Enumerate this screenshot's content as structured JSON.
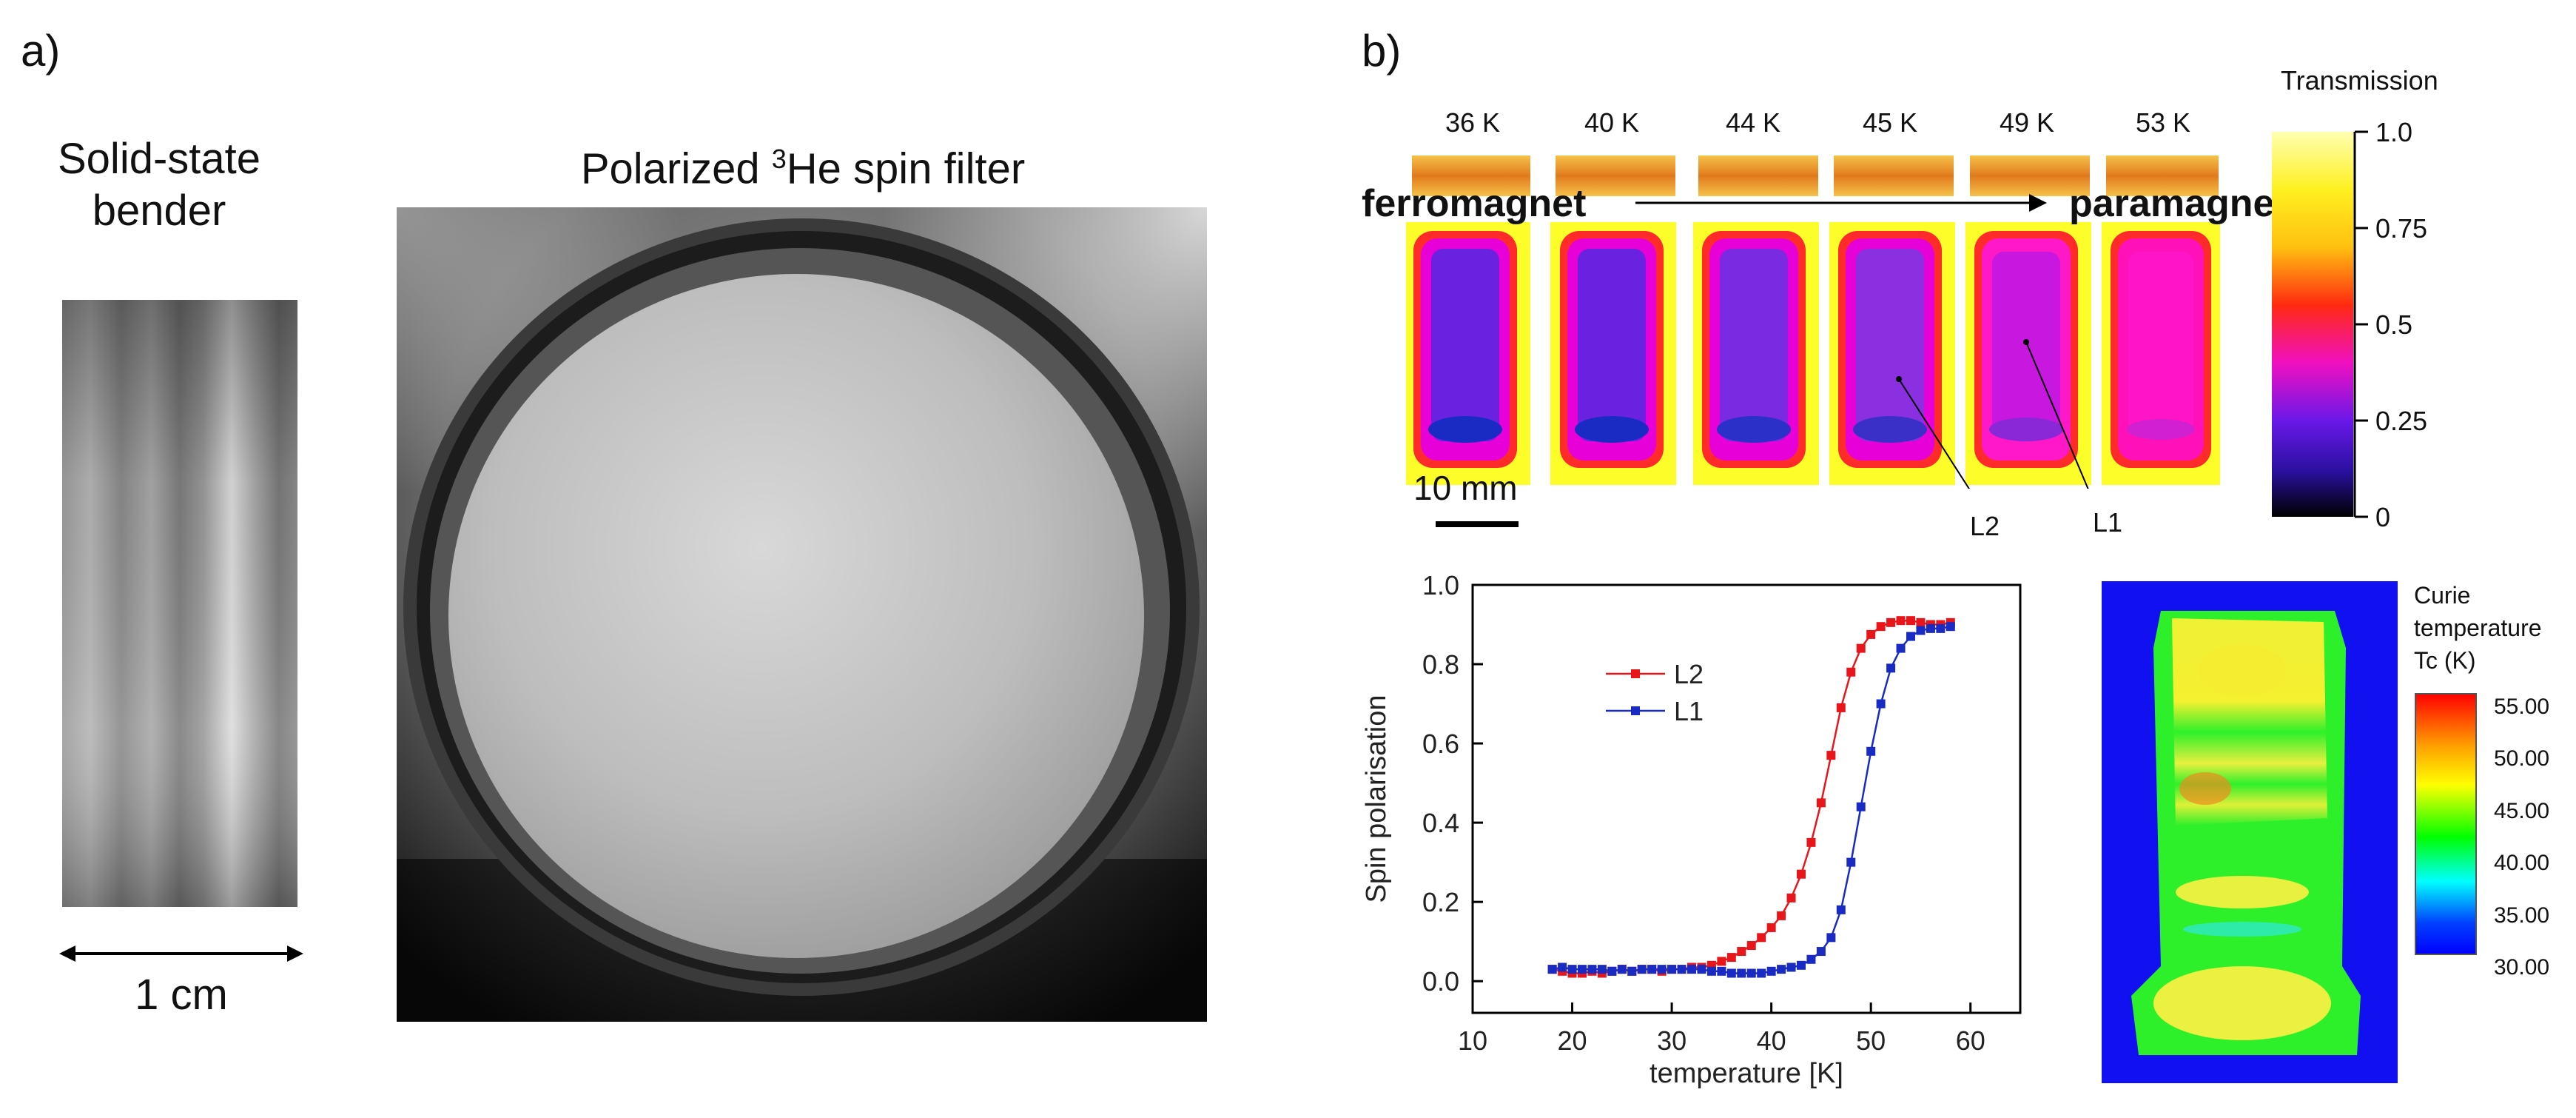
{
  "panel_a": {
    "label": "a)",
    "bender_title_line1": "Solid-state",
    "bender_title_line2": "bender",
    "scale_label": "1 cm",
    "filter_title_pre": "Polarized ",
    "filter_title_sup": "3",
    "filter_title_post": "He spin filter"
  },
  "panel_b": {
    "label": "b)",
    "temperatures": [
      "36 K",
      "40 K",
      "44 K",
      "45 K",
      "49 K",
      "53 K"
    ],
    "ferromagnet_label": "ferromagnet",
    "paramagnet_label": "paramagnet",
    "scale_label": "10 mm",
    "marker_l2": "L2",
    "marker_l1": "L1",
    "colorbar": {
      "title": "Transmission",
      "ticks": [
        "1.0",
        "0.75",
        "0.5",
        "0.25",
        "0"
      ]
    },
    "tc_map": {
      "title_line1": "Curie",
      "title_line2": "temperature",
      "title_line3": "Tc (K)",
      "ticks": [
        "55.00",
        "50.00",
        "45.00",
        "40.00",
        "35.00",
        "30.00"
      ]
    }
  },
  "chart_data": {
    "type": "line",
    "title": "",
    "xlabel": "temperature [K]",
    "ylabel": "Spin polarisation",
    "xlim": [
      10,
      65
    ],
    "ylim": [
      -0.08,
      1.0
    ],
    "xticks": [
      "10",
      "20",
      "30",
      "40",
      "50",
      "60"
    ],
    "yticks": [
      "0.0",
      "0.2",
      "0.4",
      "0.6",
      "0.8",
      "1.0"
    ],
    "legend_position": "upper-left",
    "series": [
      {
        "name": "L2",
        "color": "#e8161a",
        "x": [
          18,
          19,
          20,
          21,
          22,
          23,
          24,
          25,
          26,
          27,
          28,
          29,
          30,
          31,
          32,
          33,
          34,
          35,
          36,
          37,
          38,
          39,
          40,
          41,
          42,
          43,
          44,
          45,
          46,
          47,
          48,
          49,
          50,
          51,
          52,
          53,
          54,
          55,
          56,
          57,
          58
        ],
        "y": [
          0.03,
          0.025,
          0.02,
          0.02,
          0.025,
          0.02,
          0.025,
          0.03,
          0.025,
          0.03,
          0.03,
          0.025,
          0.03,
          0.03,
          0.035,
          0.035,
          0.04,
          0.05,
          0.06,
          0.075,
          0.09,
          0.11,
          0.135,
          0.165,
          0.21,
          0.27,
          0.35,
          0.45,
          0.57,
          0.69,
          0.78,
          0.84,
          0.875,
          0.895,
          0.905,
          0.91,
          0.91,
          0.905,
          0.9,
          0.9,
          0.905
        ]
      },
      {
        "name": "L1",
        "color": "#1a2bc4",
        "x": [
          18,
          19,
          20,
          21,
          22,
          23,
          24,
          25,
          26,
          27,
          28,
          29,
          30,
          31,
          32,
          33,
          34,
          35,
          36,
          37,
          38,
          39,
          40,
          41,
          42,
          43,
          44,
          45,
          46,
          47,
          48,
          49,
          50,
          51,
          52,
          53,
          54,
          55,
          56,
          57,
          58
        ],
        "y": [
          0.03,
          0.035,
          0.03,
          0.03,
          0.03,
          0.03,
          0.025,
          0.03,
          0.025,
          0.03,
          0.03,
          0.03,
          0.03,
          0.03,
          0.03,
          0.03,
          0.025,
          0.025,
          0.02,
          0.02,
          0.02,
          0.02,
          0.025,
          0.03,
          0.035,
          0.04,
          0.055,
          0.075,
          0.11,
          0.18,
          0.3,
          0.44,
          0.58,
          0.7,
          0.79,
          0.84,
          0.87,
          0.885,
          0.89,
          0.89,
          0.895
        ]
      }
    ]
  }
}
